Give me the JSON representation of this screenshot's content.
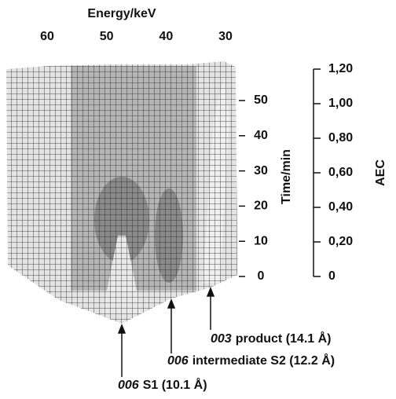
{
  "chart_data": {
    "type": "surface",
    "xlabel": "Energy/keV",
    "xlim": [
      60,
      30
    ],
    "xticks": [
      60,
      50,
      40,
      30
    ],
    "ylabel": "Time/min",
    "ylim": [
      0,
      50
    ],
    "yticks": [
      0,
      10,
      20,
      30,
      40,
      50
    ],
    "zlabel": "AEC",
    "zlim": [
      0,
      1.2
    ],
    "zticks": [
      {
        "value": 0,
        "label": "0"
      },
      {
        "value": 0.2,
        "label": "0,20"
      },
      {
        "value": 0.4,
        "label": "0,40"
      },
      {
        "value": 0.6,
        "label": "0,60"
      },
      {
        "value": 0.8,
        "label": "0,80"
      },
      {
        "value": 1.0,
        "label": "1,00"
      },
      {
        "value": 1.2,
        "label": "1,20"
      }
    ],
    "annotations": [
      {
        "italic": "003",
        "text": "product  (14.1 Å)"
      },
      {
        "italic": "006",
        "text": "intermediate S2 (12.2 Å)"
      },
      {
        "italic": "006",
        "text": "S1 (10.1 Å)"
      }
    ]
  }
}
